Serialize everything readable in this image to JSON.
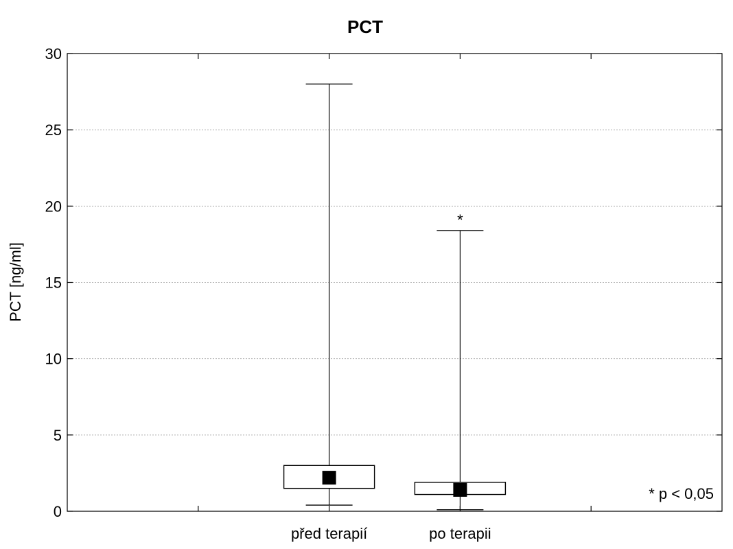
{
  "chart_data": {
    "type": "boxplot",
    "title": "PCT",
    "ylabel": "PCT [ng/ml]",
    "xlabel": "",
    "ylim": [
      0,
      30
    ],
    "yticks": [
      0,
      5,
      10,
      15,
      20,
      25,
      30
    ],
    "grid": "horizontal dotted",
    "categories": [
      "před terapií",
      "po terapii"
    ],
    "boxes": [
      {
        "category": "před terapií",
        "whisker_low": 0.4,
        "q1": 1.5,
        "median": 2.2,
        "q3": 3.0,
        "whisker_high": 28.0,
        "marker": ""
      },
      {
        "category": "po terapii",
        "whisker_low": 0.1,
        "q1": 1.1,
        "median": 1.4,
        "q3": 1.9,
        "whisker_high": 18.4,
        "marker": "*"
      }
    ],
    "annotation": "* p < 0,05"
  },
  "colors": {
    "line": "#000000",
    "grid": "#b0b0b0",
    "box_fill": "#ffffff",
    "median_marker": "#000000"
  }
}
